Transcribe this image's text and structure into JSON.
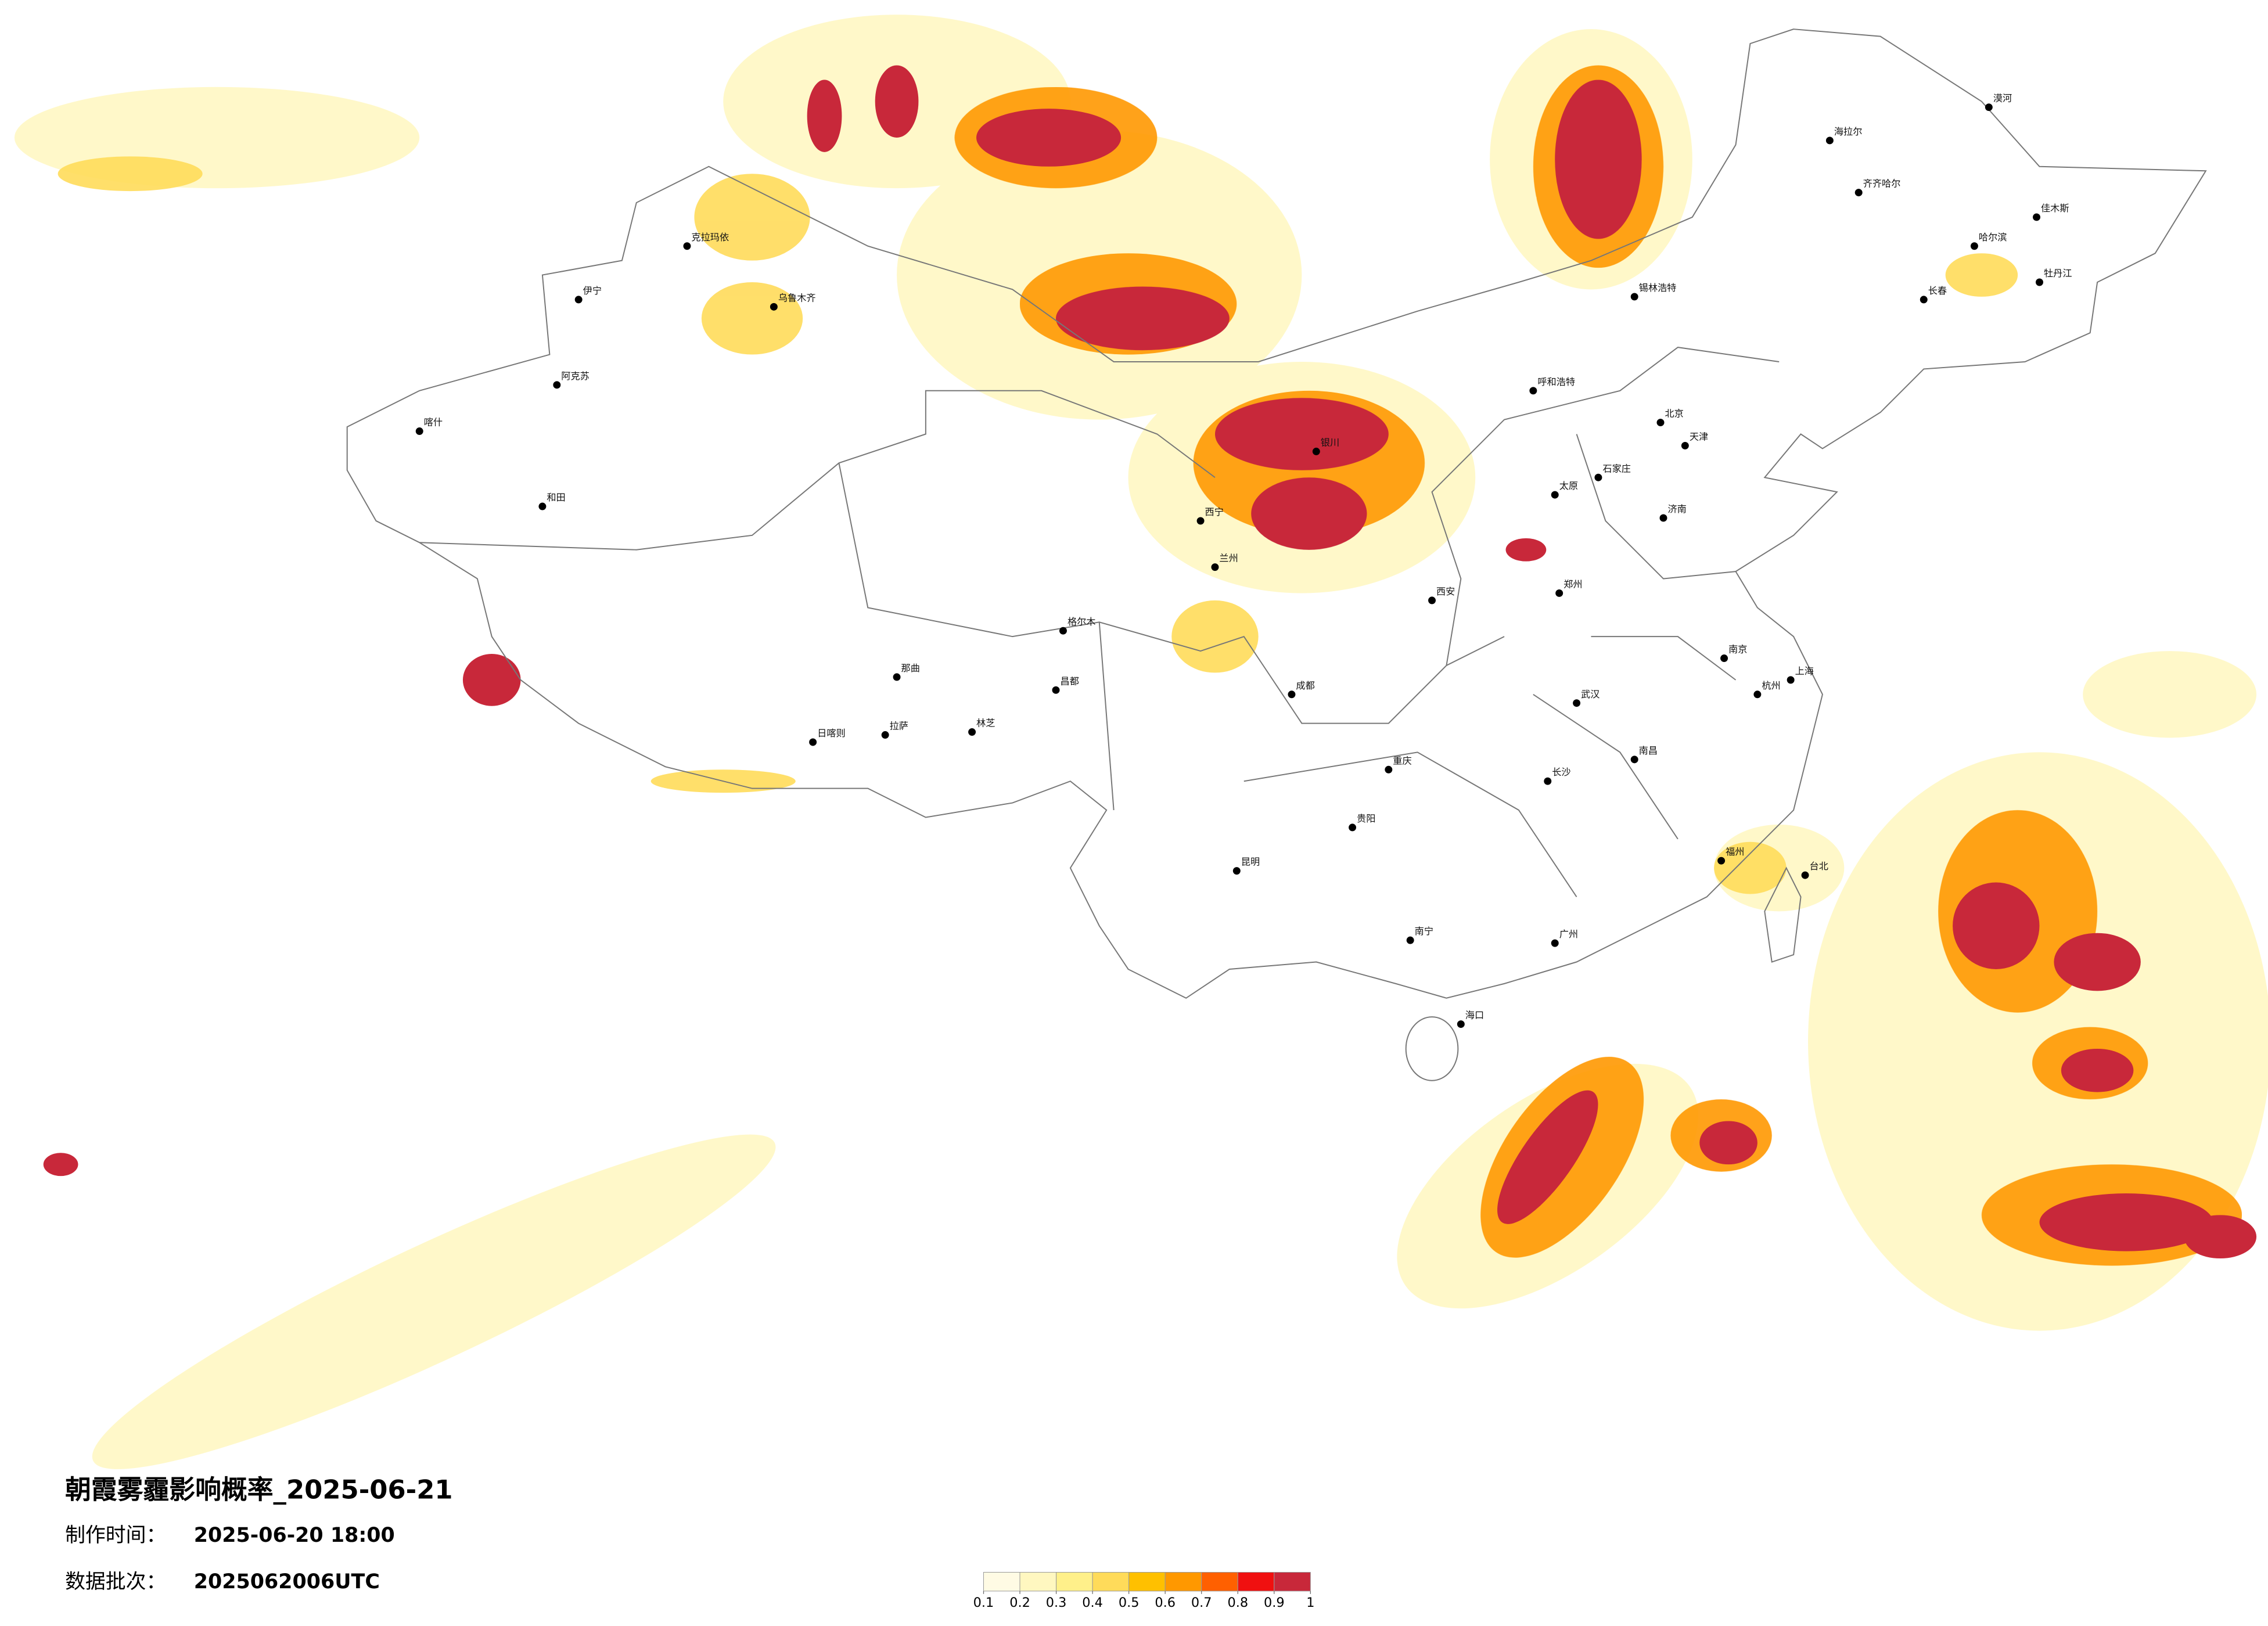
{
  "title": "朝霞雾霾影响概率_2025-06-21",
  "made_time": {
    "label": "制作时间：",
    "value": "2025-06-20 18:00"
  },
  "batch": {
    "label": "数据批次：",
    "value": "2025062006UTC"
  },
  "legend": {
    "ticks": [
      0.1,
      0.2,
      0.3,
      0.4,
      0.5,
      0.6,
      0.7,
      0.8,
      0.9,
      1
    ],
    "colors": [
      "#fffbe4",
      "#fff7c0",
      "#fff08a",
      "#ffdb5a",
      "#ffc000",
      "#ff9800",
      "#ff6000",
      "#f01010",
      "#c8283a"
    ]
  },
  "cities": [
    "漠河",
    "海拉尔",
    "齐齐哈尔",
    "哈尔滨",
    "长春",
    "佳木斯",
    "牡丹江",
    "呼和浩特",
    "锡林浩特",
    "北京",
    "天津",
    "石家庄",
    "太原",
    "济南",
    "郑州",
    "西安",
    "银川",
    "西宁",
    "兰州",
    "成都",
    "重庆",
    "贵阳",
    "昆明",
    "南宁",
    "海口",
    "长沙",
    "武汉",
    "南昌",
    "福州",
    "杭州",
    "南京",
    "上海",
    "台北",
    "广州",
    "乌鲁木齐",
    "伊宁",
    "阿克苏",
    "喀什",
    "和田",
    "日喀则",
    "拉萨",
    "林芝",
    "那曲",
    "昌都",
    "格尔木",
    "克拉玛依"
  ]
}
